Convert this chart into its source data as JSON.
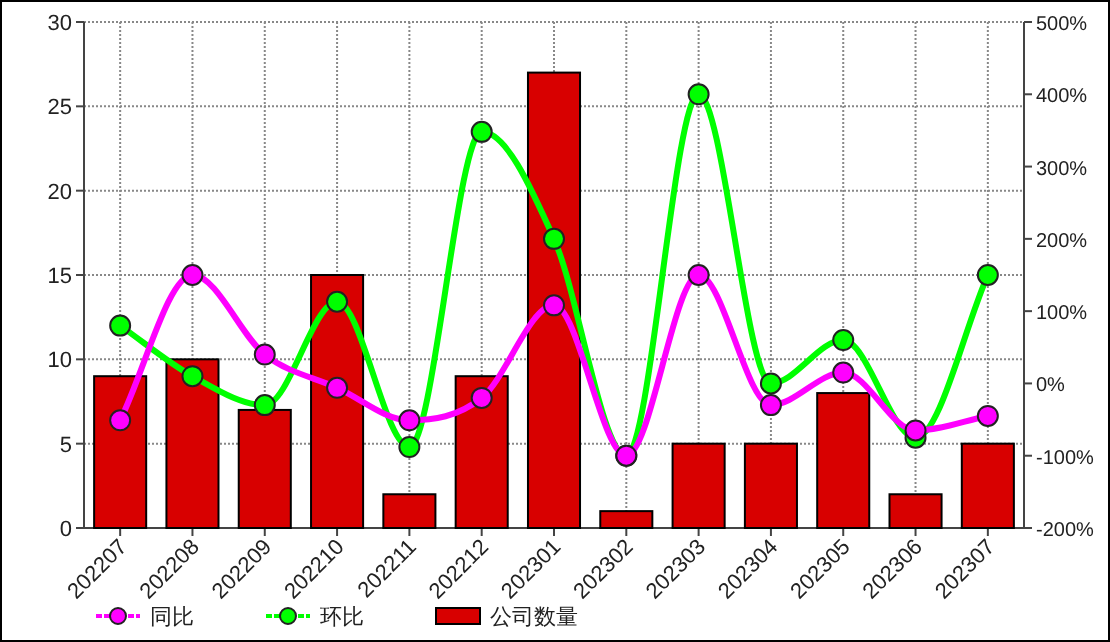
{
  "chart_data": {
    "type": "bar",
    "categories": [
      "202207",
      "202208",
      "202209",
      "202210",
      "202211",
      "202212",
      "202301",
      "202302",
      "202303",
      "202304",
      "202305",
      "202306",
      "202307"
    ],
    "series": [
      {
        "name": "同比",
        "type": "line",
        "axis": "y2",
        "color": "#ff00ff",
        "marker": "circle",
        "values": [
          -51,
          150,
          40,
          -6,
          -51,
          -20,
          108,
          -100,
          150,
          -30,
          15,
          -65,
          -45
        ]
      },
      {
        "name": "环比",
        "type": "line",
        "axis": "y2",
        "color": "#00ff00",
        "marker": "circle",
        "values": [
          80,
          10,
          -30,
          113,
          -88,
          348,
          200,
          -100,
          400,
          0,
          60,
          -75,
          150
        ]
      },
      {
        "name": "公司数量",
        "color": "#d80000",
        "values": [
          9,
          10,
          7,
          15,
          2,
          9,
          27,
          1,
          5,
          5,
          8,
          2,
          5
        ]
      }
    ],
    "ylim": [
      0,
      30
    ],
    "yticks": [
      0,
      5,
      10,
      15,
      20,
      25,
      30
    ],
    "y2lim": [
      -200,
      500
    ],
    "y2ticks": [
      {
        "value": -200,
        "label": "-200%"
      },
      {
        "value": -100,
        "label": "-100%"
      },
      {
        "value": 0,
        "label": "0%"
      },
      {
        "value": 100,
        "label": "100%"
      },
      {
        "value": 200,
        "label": "200%"
      },
      {
        "value": 300,
        "label": "300%"
      },
      {
        "value": 400,
        "label": "400%"
      },
      {
        "value": 500,
        "label": "500%"
      }
    ],
    "grid": true,
    "legend": "bottom left"
  }
}
